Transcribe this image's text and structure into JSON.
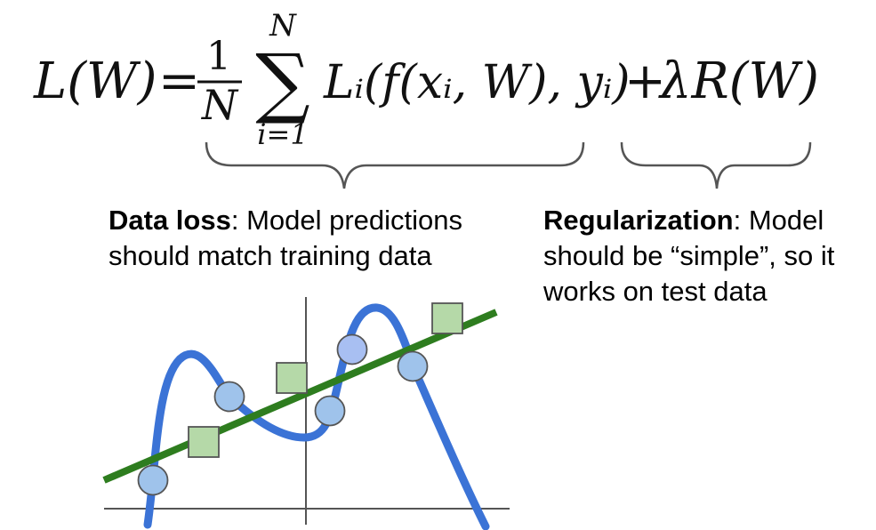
{
  "equation": {
    "lhs": "L(W)",
    "equals": "=",
    "frac_num": "1",
    "frac_den": "N",
    "sum_symbol": "∑",
    "sum_upper": "N",
    "sum_lower": "i=1",
    "data_term": "Lᵢ(f(xᵢ, W), yᵢ)",
    "plus": "+",
    "reg_term": "λR(W)"
  },
  "data_loss": {
    "bold": "Data loss",
    "rest_line1": ": Model predictions",
    "line2": "should match training data"
  },
  "regularization": {
    "bold": "Regularization",
    "rest_line1": ": Model",
    "line2": "should be “simple”, so it",
    "line3": "works on test data"
  },
  "plot": {
    "circles": [
      [
        172,
        540
      ],
      [
        258,
        446
      ],
      [
        371,
        462
      ],
      [
        396,
        393
      ],
      [
        464,
        412
      ]
    ],
    "squares": [
      [
        229,
        497
      ],
      [
        328,
        425
      ],
      [
        503,
        358
      ]
    ],
    "colors": {
      "overfit_curve": "#3b73d6",
      "simple_line": "#2e7d1f",
      "circle_fill": "#9fc3eb",
      "circle_fill_highlight": "#a8bff2",
      "square_fill": "#b5d9a8",
      "outline": "#555555",
      "axis": "#555555"
    }
  }
}
